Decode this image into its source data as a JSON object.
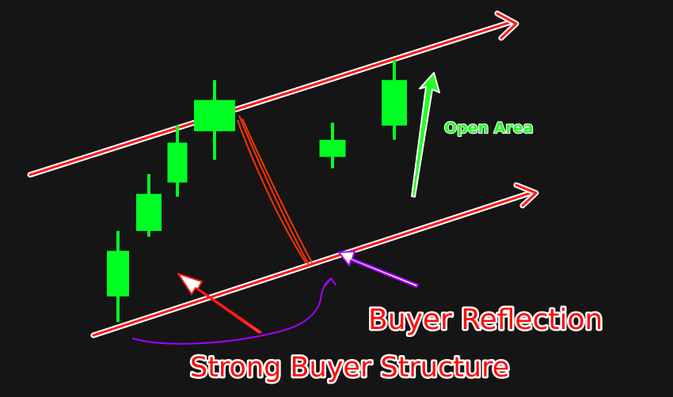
{
  "chart_data": {
    "type": "candlestick",
    "title": "",
    "xlabel": "",
    "ylabel": "",
    "grid": false,
    "legend": "none",
    "ylim": [
      0,
      100
    ],
    "colors": {
      "background": "#151515",
      "bullish_candle": "#00ff22",
      "channel_line": "#ff1a1a",
      "channel_outline": "#ffffff",
      "pullback_line": "#ff3300",
      "curve_annotation": "#a600ff",
      "label_red": "#ff0a0a",
      "label_green": "#22ff22"
    },
    "candles": [
      {
        "open": 12,
        "close": 28,
        "low": 3,
        "high": 35
      },
      {
        "open": 35,
        "close": 48,
        "low": 33,
        "high": 55
      },
      {
        "open": 52,
        "close": 66,
        "low": 47,
        "high": 72
      },
      {
        "open": 70,
        "close": 81,
        "low": 60,
        "high": 88
      },
      {
        "open": 61,
        "close": 67,
        "low": 57,
        "high": 73
      },
      {
        "open": 72,
        "close": 88,
        "low": 67,
        "high": 95
      }
    ],
    "annotations": {
      "strong_buyer_structure": "Strong Buyer Structure",
      "buyer_reflection": "Buyer Reflection",
      "open_area": "Open Area"
    }
  }
}
